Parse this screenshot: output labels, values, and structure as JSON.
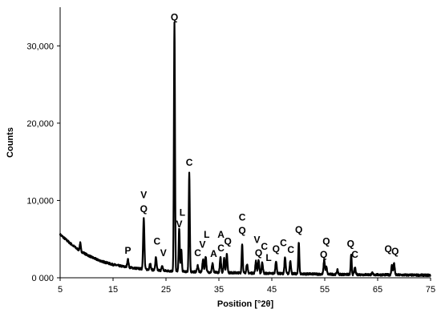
{
  "chart_data": {
    "type": "line",
    "xlabel": "Position [°2θ]",
    "ylabel": "Counts",
    "xlim": [
      5,
      75
    ],
    "ylim": [
      0,
      35000
    ],
    "grid": false,
    "x_ticks": [
      5,
      15,
      25,
      35,
      45,
      55,
      65,
      75
    ],
    "x_tick_labels": [
      "5",
      "15",
      "25",
      "35",
      "45",
      "55",
      "65",
      "75"
    ],
    "y_ticks": [
      0,
      10000,
      20000,
      30000
    ],
    "y_tick_labels": [
      "0 000",
      "10,000",
      "20,000",
      "30,000"
    ],
    "line_color": "#000000",
    "background": [
      [
        5,
        5600
      ],
      [
        6,
        5000
      ],
      [
        7,
        4400
      ],
      [
        8,
        3850
      ],
      [
        9,
        3400
      ],
      [
        10,
        3000
      ],
      [
        11,
        2650
      ],
      [
        12,
        2350
      ],
      [
        13,
        2100
      ],
      [
        14,
        1900
      ],
      [
        15,
        1700
      ],
      [
        17,
        1450
      ],
      [
        19,
        1250
      ],
      [
        21,
        1100
      ],
      [
        23,
        1000
      ],
      [
        25,
        900
      ],
      [
        27,
        850
      ],
      [
        29,
        800
      ],
      [
        31,
        760
      ],
      [
        33,
        720
      ],
      [
        35,
        690
      ],
      [
        37,
        660
      ],
      [
        40,
        620
      ],
      [
        43,
        580
      ],
      [
        46,
        550
      ],
      [
        49,
        520
      ],
      [
        52,
        490
      ],
      [
        55,
        460
      ],
      [
        58,
        440
      ],
      [
        61,
        420
      ],
      [
        64,
        400
      ],
      [
        67,
        380
      ],
      [
        70,
        360
      ],
      [
        73,
        340
      ],
      [
        75,
        330
      ]
    ],
    "peaks": [
      {
        "x": 8.8,
        "y": 4500,
        "w": 0.1
      },
      {
        "x": 17.8,
        "y": 2400,
        "w": 0.12
      },
      {
        "x": 20.8,
        "y": 7700,
        "w": 0.12
      },
      {
        "x": 22.0,
        "y": 1900,
        "w": 0.12
      },
      {
        "x": 23.1,
        "y": 2600,
        "w": 0.12
      },
      {
        "x": 24.3,
        "y": 1500,
        "w": 0.12
      },
      {
        "x": 26.6,
        "y": 33000,
        "w": 0.1
      },
      {
        "x": 27.5,
        "y": 6500,
        "w": 0.1
      },
      {
        "x": 27.9,
        "y": 3600,
        "w": 0.1
      },
      {
        "x": 29.4,
        "y": 13500,
        "w": 0.1
      },
      {
        "x": 31.0,
        "y": 1600,
        "w": 0.12
      },
      {
        "x": 32.0,
        "y": 2400,
        "w": 0.12
      },
      {
        "x": 32.5,
        "y": 2800,
        "w": 0.12
      },
      {
        "x": 33.8,
        "y": 1900,
        "w": 0.12
      },
      {
        "x": 35.3,
        "y": 2600,
        "w": 0.12
      },
      {
        "x": 36.0,
        "y": 2500,
        "w": 0.12
      },
      {
        "x": 36.5,
        "y": 3000,
        "w": 0.12
      },
      {
        "x": 39.4,
        "y": 4400,
        "w": 0.1
      },
      {
        "x": 40.3,
        "y": 1800,
        "w": 0.12
      },
      {
        "x": 42.0,
        "y": 2200,
        "w": 0.12
      },
      {
        "x": 42.5,
        "y": 2300,
        "w": 0.12
      },
      {
        "x": 43.2,
        "y": 2000,
        "w": 0.12
      },
      {
        "x": 45.8,
        "y": 2200,
        "w": 0.12
      },
      {
        "x": 47.5,
        "y": 2600,
        "w": 0.12
      },
      {
        "x": 48.5,
        "y": 2200,
        "w": 0.12
      },
      {
        "x": 50.1,
        "y": 4600,
        "w": 0.1
      },
      {
        "x": 54.9,
        "y": 2300,
        "w": 0.12
      },
      {
        "x": 55.3,
        "y": 1400,
        "w": 0.12
      },
      {
        "x": 57.4,
        "y": 1000,
        "w": 0.12
      },
      {
        "x": 60.0,
        "y": 2900,
        "w": 0.1
      },
      {
        "x": 60.7,
        "y": 1300,
        "w": 0.12
      },
      {
        "x": 64.0,
        "y": 600,
        "w": 0.12
      },
      {
        "x": 67.7,
        "y": 1600,
        "w": 0.12
      },
      {
        "x": 68.1,
        "y": 1900,
        "w": 0.12
      }
    ],
    "annotations": [
      {
        "text": "Q",
        "x": 26.6,
        "y": 33300
      },
      {
        "text": "C",
        "x": 29.4,
        "y": 14500
      },
      {
        "text": "V",
        "x": 20.8,
        "y": 10300
      },
      {
        "text": "Q",
        "x": 20.8,
        "y": 8500
      },
      {
        "text": "L",
        "x": 28.1,
        "y": 8000
      },
      {
        "text": "V",
        "x": 27.5,
        "y": 6500
      },
      {
        "text": "P",
        "x": 17.8,
        "y": 3100
      },
      {
        "text": "C",
        "x": 23.3,
        "y": 4300
      },
      {
        "text": "V",
        "x": 24.5,
        "y": 2800
      },
      {
        "text": "C",
        "x": 31.0,
        "y": 2800
      },
      {
        "text": "L",
        "x": 32.7,
        "y": 5200
      },
      {
        "text": "V",
        "x": 31.9,
        "y": 3900
      },
      {
        "text": "A",
        "x": 34.0,
        "y": 2700
      },
      {
        "text": "A",
        "x": 35.4,
        "y": 5200
      },
      {
        "text": "Q",
        "x": 36.7,
        "y": 4300
      },
      {
        "text": "C",
        "x": 35.4,
        "y": 3400
      },
      {
        "text": "C",
        "x": 39.4,
        "y": 7400
      },
      {
        "text": "Q",
        "x": 39.4,
        "y": 5700
      },
      {
        "text": "V",
        "x": 42.2,
        "y": 4500
      },
      {
        "text": "Q",
        "x": 42.5,
        "y": 2800
      },
      {
        "text": "C",
        "x": 43.6,
        "y": 3600
      },
      {
        "text": "L",
        "x": 44.4,
        "y": 2200
      },
      {
        "text": "Q",
        "x": 45.8,
        "y": 3300
      },
      {
        "text": "C",
        "x": 47.2,
        "y": 4100
      },
      {
        "text": "C",
        "x": 48.6,
        "y": 3200
      },
      {
        "text": "Q",
        "x": 50.1,
        "y": 5800
      },
      {
        "text": "Q",
        "x": 55.3,
        "y": 4300
      },
      {
        "text": "Q",
        "x": 54.8,
        "y": 2600
      },
      {
        "text": "Q",
        "x": 59.9,
        "y": 4000
      },
      {
        "text": "C",
        "x": 60.7,
        "y": 2600
      },
      {
        "text": "Q",
        "x": 67.0,
        "y": 3300
      },
      {
        "text": "Q",
        "x": 68.3,
        "y": 3000
      }
    ]
  }
}
